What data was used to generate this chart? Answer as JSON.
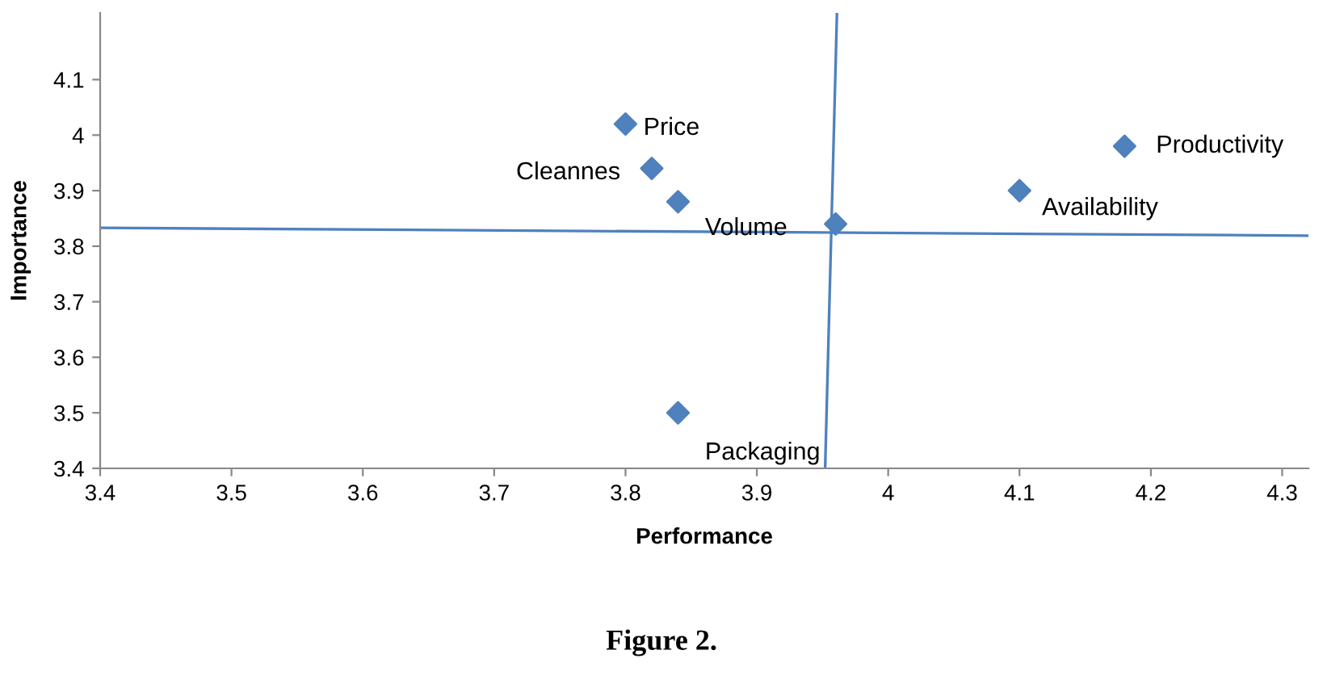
{
  "chart_data": {
    "type": "scatter",
    "title": "Figure 2.",
    "xlabel": "Performance",
    "ylabel": "Importance",
    "xlim": [
      3.4,
      4.32
    ],
    "ylim": [
      3.4,
      4.22
    ],
    "xticks": [
      3.4,
      3.5,
      3.6,
      3.7,
      3.8,
      3.9,
      {
        "value": 4,
        "label": "4"
      },
      4.1,
      4.2,
      4.3
    ],
    "yticks": [
      3.4,
      3.5,
      3.6,
      3.7,
      3.8,
      3.9,
      {
        "value": 4,
        "label": "4"
      },
      4.1
    ],
    "grid": false,
    "legend": false,
    "series": [
      {
        "marker": "diamond",
        "color": "#4f81bd",
        "x": [
          3.8,
          3.82,
          3.84,
          3.84,
          3.96,
          4.1,
          4.18
        ],
        "values": [
          4.02,
          3.94,
          3.88,
          3.5,
          3.84,
          3.9,
          3.98
        ]
      },
      {
        "type": "line",
        "marker": "none",
        "color": "#4f81bd",
        "x": [
          3.4,
          4.32
        ],
        "values": [
          3.833,
          3.819
        ]
      },
      {
        "type": "line",
        "marker": "none",
        "color": "#4f81bd",
        "x": [
          3.952,
          3.961
        ],
        "values": [
          3.4,
          4.22
        ]
      }
    ],
    "annotations": [
      {
        "text": "Price",
        "x": 3.8,
        "y": 4.02
      },
      {
        "text": "Cleannes",
        "x": 3.82,
        "y": 3.94
      },
      {
        "text": "Volume",
        "x": 3.84,
        "y": 3.88
      },
      {
        "text": "Packaging",
        "x": 3.84,
        "y": 3.5
      },
      {
        "text": "Availability",
        "x": 4.1,
        "y": 3.9
      },
      {
        "text": "Productivity",
        "x": 4.18,
        "y": 3.98
      }
    ]
  }
}
